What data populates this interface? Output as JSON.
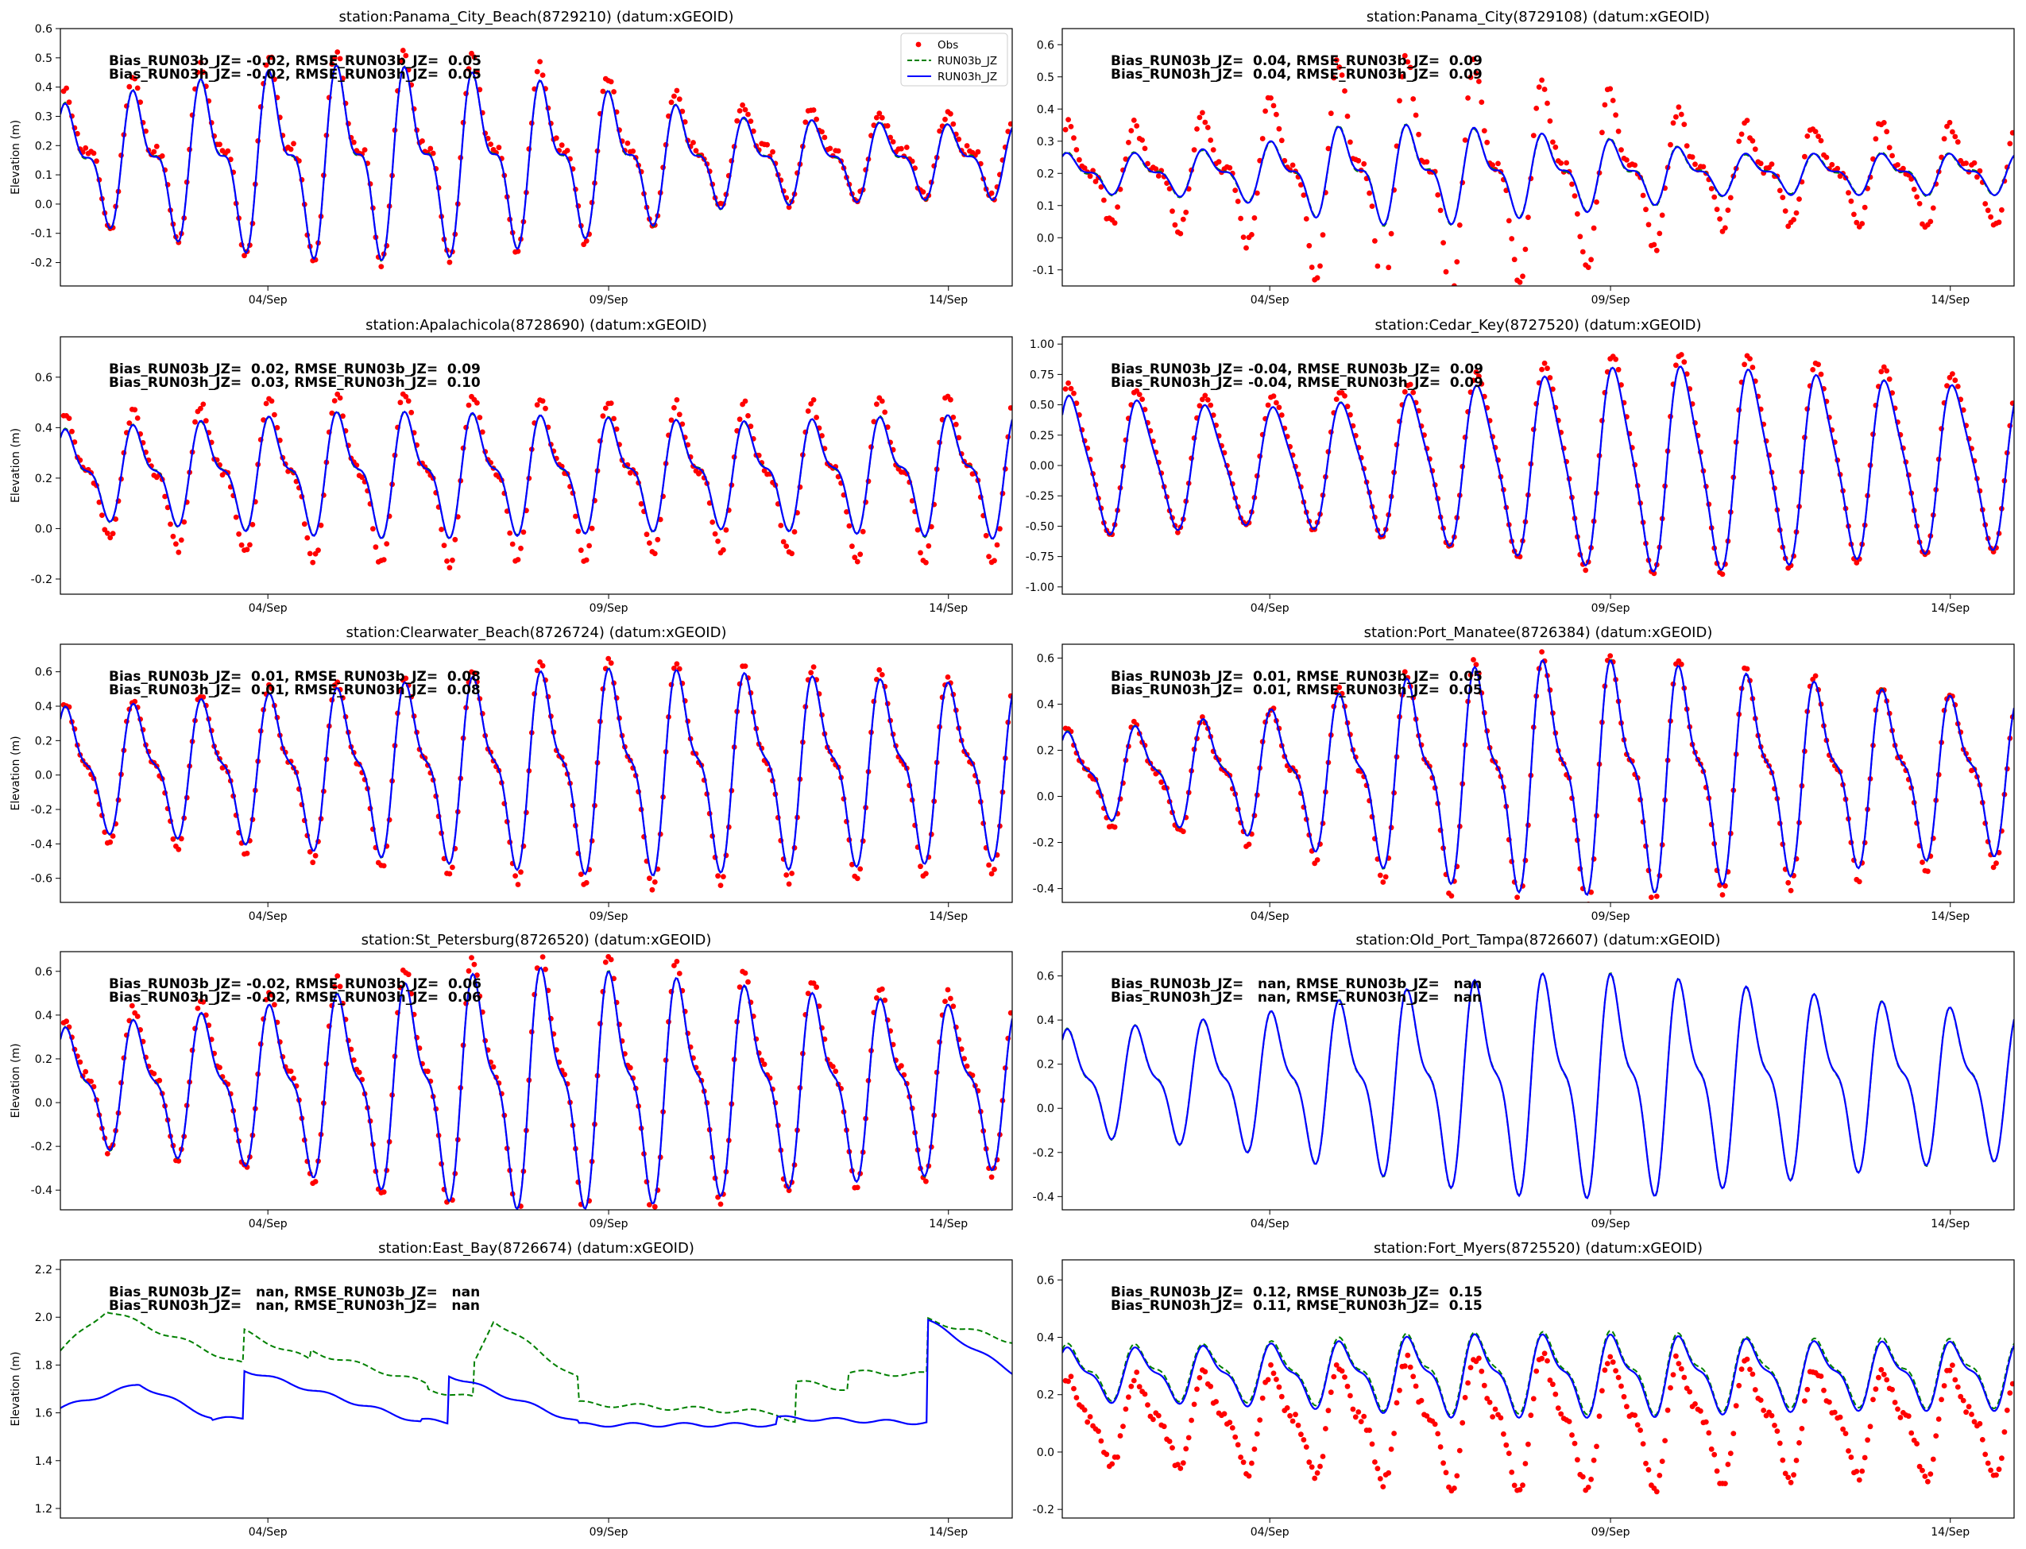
{
  "figure": {
    "ylabel": "Elevation (m)",
    "legend": {
      "position": "top-right",
      "panel": 0,
      "entries": [
        "Obs",
        "RUN03b_JZ",
        "RUN03h_JZ"
      ]
    },
    "colors": {
      "obs": "#ff0000",
      "run03b": "#008000",
      "run03h": "#0000ff"
    }
  },
  "chart_data": [
    {
      "type": "line",
      "title": "station:Panama_City_Beach(8729210) (datum:xGEOID)",
      "ylabel": "Elevation (m)",
      "xticks": [
        "04/Sep",
        "09/Sep",
        "14/Sep"
      ],
      "ylim": [
        -0.28,
        0.6
      ],
      "yticks": [
        "-0.2",
        "-0.1",
        "0.0",
        "0.1",
        "0.2",
        "0.3",
        "0.4",
        "0.5",
        "0.6"
      ],
      "stats": [
        "Bias_RUN03b_JZ= -0.02, RMSE_RUN03b_JZ=  0.05",
        "Bias_RUN03h_JZ= -0.02, RMSE_RUN03h_JZ=  0.05"
      ],
      "series": [
        {
          "name": "Obs",
          "style": "dots"
        },
        {
          "name": "RUN03b_JZ",
          "style": "dashed"
        },
        {
          "name": "RUN03h_JZ",
          "style": "solid"
        }
      ],
      "model": {
        "mean": 0.15,
        "amp": [
          0.15,
          0.2,
          0.24,
          0.26,
          0.25,
          0.22,
          0.18,
          0.12,
          0.11,
          0.1,
          0.1
        ],
        "ratio": 0.5,
        "obs_offset": 0.02,
        "obs_scale": 1.1,
        "b_offset": 0,
        "seed": 11
      }
    },
    {
      "type": "line",
      "title": "station:Panama_City(8729108) (datum:xGEOID)",
      "ylabel": "",
      "xticks": [
        "04/Sep",
        "09/Sep",
        "14/Sep"
      ],
      "ylim": [
        -0.15,
        0.65
      ],
      "yticks": [
        "-0.1",
        "0.0",
        "0.1",
        "0.2",
        "0.3",
        "0.4",
        "0.5",
        "0.6"
      ],
      "stats": [
        "Bias_RUN03b_JZ=  0.04, RMSE_RUN03b_JZ=  0.09",
        "Bias_RUN03h_JZ=  0.04, RMSE_RUN03h_JZ=  0.09"
      ],
      "series": [
        {
          "name": "Obs",
          "style": "dots"
        },
        {
          "name": "RUN03b_JZ",
          "style": "dashed"
        },
        {
          "name": "RUN03h_JZ",
          "style": "solid"
        }
      ],
      "model": {
        "mean": 0.2,
        "amp": [
          0.05,
          0.05,
          0.07,
          0.12,
          0.12,
          0.1,
          0.08,
          0.05,
          0.05,
          0.05,
          0.05
        ],
        "ratio": 0.5,
        "obs_offset": 0.0,
        "obs_scale": 2.4,
        "b_offset": 0,
        "seed": 23
      }
    },
    {
      "type": "line",
      "title": "station:Apalachicola(8728690) (datum:xGEOID)",
      "ylabel": "Elevation (m)",
      "xticks": [
        "04/Sep",
        "09/Sep",
        "14/Sep"
      ],
      "ylim": [
        -0.26,
        0.76
      ],
      "yticks": [
        "-0.2",
        "0.0",
        "0.2",
        "0.4",
        "0.6"
      ],
      "stats": [
        "Bias_RUN03b_JZ=  0.02, RMSE_RUN03b_JZ=  0.09",
        "Bias_RUN03h_JZ=  0.03, RMSE_RUN03h_JZ=  0.10"
      ],
      "series": [
        {
          "name": "Obs",
          "style": "dots"
        },
        {
          "name": "RUN03b_JZ",
          "style": "dashed"
        },
        {
          "name": "RUN03h_JZ",
          "style": "solid"
        }
      ],
      "model": {
        "mean": 0.22,
        "amp": [
          0.14,
          0.16,
          0.18,
          0.2,
          0.2,
          0.19,
          0.18,
          0.17,
          0.18,
          0.19,
          0.2
        ],
        "ratio": 0.45,
        "obs_offset": -0.01,
        "obs_scale": 1.35,
        "b_offset": 0,
        "seed": 37
      }
    },
    {
      "type": "line",
      "title": "station:Cedar_Key(8727520) (datum:xGEOID)",
      "ylabel": "",
      "xticks": [
        "04/Sep",
        "09/Sep",
        "14/Sep"
      ],
      "ylim": [
        -1.06,
        1.06
      ],
      "yticks": [
        "-1.00",
        "-0.75",
        "-0.50",
        "-0.25",
        "0.00",
        "0.25",
        "0.50",
        "0.75",
        "1.00"
      ],
      "stats": [
        "Bias_RUN03b_JZ= -0.04, RMSE_RUN03b_JZ=  0.09",
        "Bias_RUN03h_JZ= -0.04, RMSE_RUN03h_JZ=  0.09"
      ],
      "series": [
        {
          "name": "Obs",
          "style": "dots"
        },
        {
          "name": "RUN03b_JZ",
          "style": "dashed"
        },
        {
          "name": "RUN03h_JZ",
          "style": "solid"
        }
      ],
      "model": {
        "mean": 0.0,
        "amp": [
          0.55,
          0.5,
          0.45,
          0.5,
          0.6,
          0.7,
          0.8,
          0.78,
          0.72,
          0.66,
          0.62
        ],
        "ratio": 0.2,
        "obs_offset": 0.04,
        "obs_scale": 1.08,
        "b_offset": 0,
        "seed": 41
      }
    },
    {
      "type": "line",
      "title": "station:Clearwater_Beach(8726724) (datum:xGEOID)",
      "ylabel": "Elevation (m)",
      "xticks": [
        "04/Sep",
        "09/Sep",
        "14/Sep"
      ],
      "ylim": [
        -0.74,
        0.76
      ],
      "yticks": [
        "-0.6",
        "-0.4",
        "-0.2",
        "0.0",
        "0.2",
        "0.4",
        "0.6"
      ],
      "stats": [
        "Bias_RUN03b_JZ=  0.01, RMSE_RUN03b_JZ=  0.08",
        "Bias_RUN03h_JZ=  0.01, RMSE_RUN03h_JZ=  0.08"
      ],
      "series": [
        {
          "name": "Obs",
          "style": "dots"
        },
        {
          "name": "RUN03b_JZ",
          "style": "dashed"
        },
        {
          "name": "RUN03h_JZ",
          "style": "solid"
        }
      ],
      "model": {
        "mean": 0.04,
        "amp": [
          0.3,
          0.32,
          0.36,
          0.4,
          0.44,
          0.48,
          0.5,
          0.48,
          0.46,
          0.44,
          0.42
        ],
        "ratio": 0.4,
        "obs_offset": -0.01,
        "obs_scale": 1.1,
        "b_offset": 0,
        "seed": 53
      }
    },
    {
      "type": "line",
      "title": "station:Port_Manatee(8726384) (datum:xGEOID)",
      "ylabel": "",
      "xticks": [
        "04/Sep",
        "09/Sep",
        "14/Sep"
      ],
      "ylim": [
        -0.46,
        0.66
      ],
      "yticks": [
        "-0.4",
        "-0.2",
        "0.0",
        "0.2",
        "0.4",
        "0.6"
      ],
      "stats": [
        "Bias_RUN03b_JZ=  0.01, RMSE_RUN03b_JZ=  0.05",
        "Bias_RUN03h_JZ=  0.01, RMSE_RUN03h_JZ=  0.05"
      ],
      "series": [
        {
          "name": "Obs",
          "style": "dots"
        },
        {
          "name": "RUN03b_JZ",
          "style": "dashed"
        },
        {
          "name": "RUN03h_JZ",
          "style": "solid"
        }
      ],
      "model": {
        "mean": 0.1,
        "amp": [
          0.15,
          0.18,
          0.22,
          0.3,
          0.38,
          0.42,
          0.42,
          0.38,
          0.34,
          0.3,
          0.28
        ],
        "ratio": 0.4,
        "obs_offset": -0.01,
        "obs_scale": 1.08,
        "b_offset": 0,
        "seed": 67
      }
    },
    {
      "type": "line",
      "title": "station:St_Petersburg(8726520) (datum:xGEOID)",
      "ylabel": "Elevation (m)",
      "xticks": [
        "04/Sep",
        "09/Sep",
        "14/Sep"
      ],
      "ylim": [
        -0.49,
        0.69
      ],
      "yticks": [
        "-0.4",
        "-0.2",
        "0.0",
        "0.2",
        "0.4",
        "0.6"
      ],
      "stats": [
        "Bias_RUN03b_JZ= -0.02, RMSE_RUN03b_JZ=  0.06",
        "Bias_RUN03h_JZ= -0.02, RMSE_RUN03h_JZ=  0.06"
      ],
      "series": [
        {
          "name": "Obs",
          "style": "dots"
        },
        {
          "name": "RUN03b_JZ",
          "style": "dashed"
        },
        {
          "name": "RUN03h_JZ",
          "style": "solid"
        }
      ],
      "model": {
        "mean": 0.08,
        "amp": [
          0.22,
          0.26,
          0.3,
          0.36,
          0.42,
          0.46,
          0.44,
          0.4,
          0.36,
          0.33,
          0.3
        ],
        "ratio": 0.4,
        "obs_offset": 0.02,
        "obs_scale": 1.1,
        "b_offset": 0,
        "seed": 71
      }
    },
    {
      "type": "line",
      "title": "station:Old_Port_Tampa(8726607) (datum:xGEOID)",
      "ylabel": "",
      "xticks": [
        "04/Sep",
        "09/Sep",
        "14/Sep"
      ],
      "ylim": [
        -0.46,
        0.71
      ],
      "yticks": [
        "-0.4",
        "-0.2",
        "0.0",
        "0.2",
        "0.4",
        "0.6"
      ],
      "stats": [
        "Bias_RUN03b_JZ=   nan, RMSE_RUN03b_JZ=   nan",
        "Bias_RUN03h_JZ=   nan, RMSE_RUN03h_JZ=   nan"
      ],
      "series": [
        {
          "name": "RUN03b_JZ",
          "style": "dashed"
        },
        {
          "name": "RUN03h_JZ",
          "style": "solid"
        }
      ],
      "model": {
        "mean": 0.12,
        "amp": [
          0.2,
          0.22,
          0.26,
          0.32,
          0.38,
          0.42,
          0.42,
          0.38,
          0.34,
          0.3,
          0.28
        ],
        "ratio": 0.4,
        "obs_offset": 0,
        "obs_scale": 1,
        "b_offset": 0,
        "seed": 83,
        "no_obs": true
      }
    },
    {
      "type": "line",
      "title": "station:East_Bay(8726674) (datum:xGEOID)",
      "ylabel": "Elevation (m)",
      "xticks": [
        "04/Sep",
        "09/Sep",
        "14/Sep"
      ],
      "ylim": [
        1.16,
        2.24
      ],
      "yticks": [
        "1.2",
        "1.4",
        "1.6",
        "1.8",
        "2.0",
        "2.2"
      ],
      "stats": [
        "Bias_RUN03b_JZ=   nan, RMSE_RUN03b_JZ=   nan",
        "Bias_RUN03h_JZ=   nan, RMSE_RUN03h_JZ=   nan"
      ],
      "series": [
        {
          "name": "RUN03b_JZ",
          "style": "dashed"
        },
        {
          "name": "RUN03h_JZ",
          "style": "solid"
        }
      ],
      "model": {
        "kind": "drift",
        "seed": 97,
        "no_obs": true
      }
    },
    {
      "type": "line",
      "title": "station:Fort_Myers(8725520) (datum:xGEOID)",
      "ylabel": "",
      "xticks": [
        "04/Sep",
        "09/Sep",
        "14/Sep"
      ],
      "ylim": [
        -0.23,
        0.67
      ],
      "yticks": [
        "-0.2",
        "0.0",
        "0.2",
        "0.4",
        "0.6"
      ],
      "stats": [
        "Bias_RUN03b_JZ=  0.12, RMSE_RUN03b_JZ=  0.15",
        "Bias_RUN03h_JZ=  0.11, RMSE_RUN03h_JZ=  0.15"
      ],
      "series": [
        {
          "name": "Obs",
          "style": "dots"
        },
        {
          "name": "RUN03b_JZ",
          "style": "dashed"
        },
        {
          "name": "RUN03h_JZ",
          "style": "solid"
        }
      ],
      "model": {
        "mean": 0.27,
        "amp": [
          0.08,
          0.08,
          0.09,
          0.1,
          0.12,
          0.12,
          0.12,
          0.11,
          0.1,
          0.1,
          0.1
        ],
        "ratio": 0.4,
        "obs_offset": -0.16,
        "obs_scale": 1.6,
        "b_offset": 0.01,
        "seed": 101
      }
    }
  ]
}
